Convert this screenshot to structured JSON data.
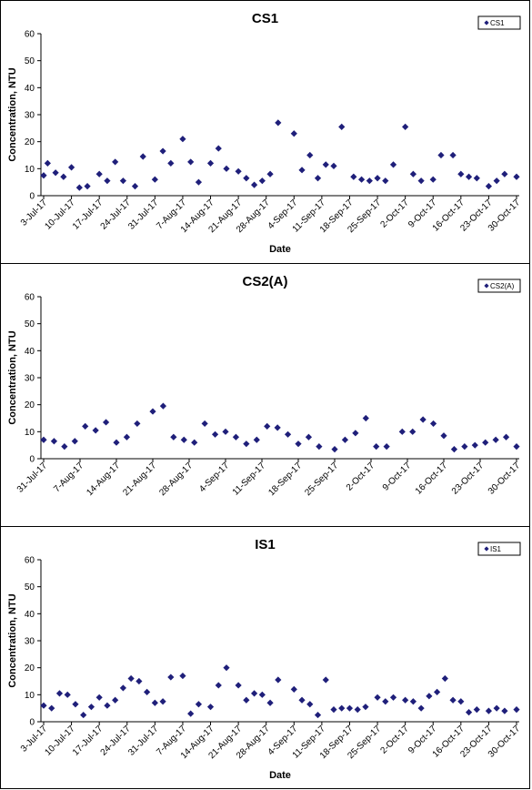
{
  "chart_data": [
    {
      "type": "scatter",
      "title": "CS1",
      "xlabel": "Date",
      "ylabel": "Concentration, NTU",
      "ylim": [
        0,
        60
      ],
      "yticks": [
        "0",
        "10",
        "20",
        "30",
        "40",
        "50",
        "60"
      ],
      "xlim": [
        "2017-07-03",
        "2017-10-30"
      ],
      "xticks": [
        "3-Jul-17",
        "10-Jul-17",
        "17-Jul-17",
        "24-Jul-17",
        "31-Jul-17",
        "7-Aug-17",
        "14-Aug-17",
        "21-Aug-17",
        "28-Aug-17",
        "4-Sep-17",
        "11-Sep-17",
        "18-Sep-17",
        "25-Sep-17",
        "2-Oct-17",
        "9-Oct-17",
        "16-Oct-17",
        "23-Oct-17",
        "30-Oct-17"
      ],
      "legend": {
        "position": "top-right"
      },
      "series": [
        {
          "name": "CS1",
          "color": "#1f1f7a",
          "marker": "diamond",
          "x": [
            "2017-07-03",
            "2017-07-04",
            "2017-07-06",
            "2017-07-08",
            "2017-07-10",
            "2017-07-12",
            "2017-07-14",
            "2017-07-17",
            "2017-07-19",
            "2017-07-21",
            "2017-07-23",
            "2017-07-26",
            "2017-07-28",
            "2017-07-31",
            "2017-08-02",
            "2017-08-04",
            "2017-08-07",
            "2017-08-09",
            "2017-08-11",
            "2017-08-14",
            "2017-08-16",
            "2017-08-18",
            "2017-08-21",
            "2017-08-23",
            "2017-08-25",
            "2017-08-27",
            "2017-08-29",
            "2017-08-31",
            "2017-09-04",
            "2017-09-06",
            "2017-09-08",
            "2017-09-10",
            "2017-09-12",
            "2017-09-14",
            "2017-09-16",
            "2017-09-19",
            "2017-09-21",
            "2017-09-23",
            "2017-09-25",
            "2017-09-27",
            "2017-09-29",
            "2017-10-02",
            "2017-10-04",
            "2017-10-06",
            "2017-10-09",
            "2017-10-11",
            "2017-10-14",
            "2017-10-16",
            "2017-10-18",
            "2017-10-20",
            "2017-10-23",
            "2017-10-25",
            "2017-10-27",
            "2017-10-30"
          ],
          "y": [
            7.5,
            12,
            8.5,
            7,
            10.5,
            3,
            3.5,
            8,
            5.5,
            12.5,
            5.5,
            3.5,
            14.5,
            6,
            16.5,
            12,
            21,
            12.5,
            5,
            12,
            17.5,
            10,
            9,
            6.5,
            4,
            5.5,
            8,
            27,
            23,
            9.5,
            15,
            6.5,
            11.5,
            11,
            25.5,
            7,
            6,
            5.5,
            6.5,
            5.5,
            11.5,
            25.5,
            8,
            5.5,
            6,
            15,
            15,
            8,
            7,
            6.5,
            3.5,
            5.5,
            8,
            7
          ]
        }
      ]
    },
    {
      "type": "scatter",
      "title": "CS2(A)",
      "xlabel": "",
      "ylabel": "Concentration, NTU",
      "ylim": [
        0,
        60
      ],
      "yticks": [
        "0",
        "10",
        "20",
        "30",
        "40",
        "50",
        "60"
      ],
      "xlim": [
        "2017-07-31",
        "2017-10-30"
      ],
      "xticks": [
        "31-Jul-17",
        "7-Aug-17",
        "14-Aug-17",
        "21-Aug-17",
        "28-Aug-17",
        "4-Sep-17",
        "11-Sep-17",
        "18-Sep-17",
        "25-Sep-17",
        "2-Oct-17",
        "9-Oct-17",
        "16-Oct-17",
        "23-Oct-17",
        "30-Oct-17"
      ],
      "legend": {
        "position": "top-right"
      },
      "series": [
        {
          "name": "CS2(A)",
          "color": "#1f1f7a",
          "marker": "diamond",
          "x": [
            "2017-07-31",
            "2017-08-02",
            "2017-08-04",
            "2017-08-06",
            "2017-08-08",
            "2017-08-10",
            "2017-08-12",
            "2017-08-14",
            "2017-08-16",
            "2017-08-18",
            "2017-08-21",
            "2017-08-23",
            "2017-08-25",
            "2017-08-27",
            "2017-08-29",
            "2017-08-31",
            "2017-09-02",
            "2017-09-04",
            "2017-09-06",
            "2017-09-08",
            "2017-09-10",
            "2017-09-12",
            "2017-09-14",
            "2017-09-16",
            "2017-09-18",
            "2017-09-20",
            "2017-09-22",
            "2017-09-25",
            "2017-09-27",
            "2017-09-29",
            "2017-10-01",
            "2017-10-03",
            "2017-10-05",
            "2017-10-08",
            "2017-10-10",
            "2017-10-12",
            "2017-10-14",
            "2017-10-16",
            "2017-10-18",
            "2017-10-20",
            "2017-10-22",
            "2017-10-24",
            "2017-10-26",
            "2017-10-28",
            "2017-10-30"
          ],
          "y": [
            7,
            6.5,
            4.5,
            6.5,
            12,
            10.5,
            13.5,
            6,
            8,
            13,
            17.5,
            19.5,
            8,
            7,
            6,
            13,
            9,
            10,
            8,
            5.5,
            7,
            12,
            11.5,
            9,
            5.5,
            8,
            4.5,
            3.5,
            7,
            9.5,
            15,
            4.5,
            4.5,
            10,
            10,
            14.5,
            13,
            8.5,
            3.5,
            4.5,
            5,
            6,
            7,
            8,
            4.5
          ]
        }
      ]
    },
    {
      "type": "scatter",
      "title": "IS1",
      "xlabel": "Date",
      "ylabel": "Concentration, NTU",
      "ylim": [
        0,
        60
      ],
      "yticks": [
        "0",
        "10",
        "20",
        "30",
        "40",
        "50",
        "60"
      ],
      "xlim": [
        "2017-07-03",
        "2017-10-30"
      ],
      "xticks": [
        "3-Jul-17",
        "10-Jul-17",
        "17-Jul-17",
        "24-Jul-17",
        "31-Jul-17",
        "7-Aug-17",
        "14-Aug-17",
        "21-Aug-17",
        "28-Aug-17",
        "4-Sep-17",
        "11-Sep-17",
        "18-Sep-17",
        "25-Sep-17",
        "2-Oct-17",
        "9-Oct-17",
        "16-Oct-17",
        "23-Oct-17",
        "30-Oct-17"
      ],
      "legend": {
        "position": "top-right"
      },
      "series": [
        {
          "name": "IS1",
          "color": "#1f1f7a",
          "marker": "diamond",
          "x": [
            "2017-07-03",
            "2017-07-05",
            "2017-07-07",
            "2017-07-09",
            "2017-07-11",
            "2017-07-13",
            "2017-07-15",
            "2017-07-17",
            "2017-07-19",
            "2017-07-21",
            "2017-07-23",
            "2017-07-25",
            "2017-07-27",
            "2017-07-29",
            "2017-07-31",
            "2017-08-02",
            "2017-08-04",
            "2017-08-07",
            "2017-08-09",
            "2017-08-11",
            "2017-08-14",
            "2017-08-16",
            "2017-08-18",
            "2017-08-21",
            "2017-08-23",
            "2017-08-25",
            "2017-08-27",
            "2017-08-29",
            "2017-08-31",
            "2017-09-04",
            "2017-09-06",
            "2017-09-08",
            "2017-09-10",
            "2017-09-12",
            "2017-09-14",
            "2017-09-16",
            "2017-09-18",
            "2017-09-20",
            "2017-09-22",
            "2017-09-25",
            "2017-09-27",
            "2017-09-29",
            "2017-10-02",
            "2017-10-04",
            "2017-10-06",
            "2017-10-08",
            "2017-10-10",
            "2017-10-12",
            "2017-10-14",
            "2017-10-16",
            "2017-10-18",
            "2017-10-20",
            "2017-10-23",
            "2017-10-25",
            "2017-10-27",
            "2017-10-30"
          ],
          "y": [
            6,
            5,
            10.5,
            10,
            6.5,
            2.5,
            5.5,
            9,
            6,
            8,
            12.5,
            16,
            15,
            11,
            7,
            7.5,
            16.5,
            17,
            3,
            6.5,
            5.5,
            13.5,
            20,
            13.5,
            8,
            10.5,
            10,
            7,
            15.5,
            12,
            8,
            6.5,
            2.5,
            15.5,
            4.5,
            5,
            5,
            4.5,
            5.5,
            9,
            7.5,
            9,
            8,
            7.5,
            5,
            9.5,
            11,
            16,
            8,
            7.5,
            3.5,
            4.5,
            4,
            5,
            4,
            4.5
          ]
        }
      ]
    }
  ]
}
